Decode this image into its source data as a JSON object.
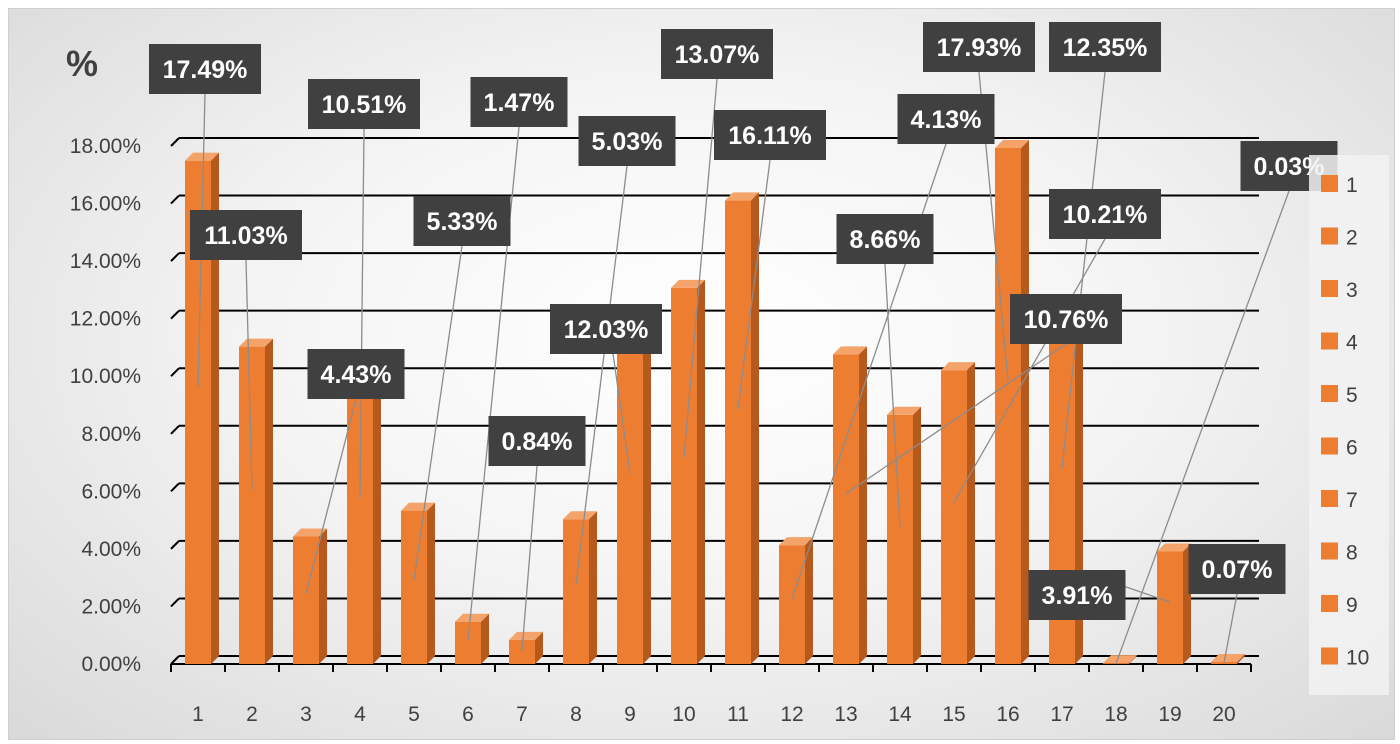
{
  "chart_data": {
    "type": "bar",
    "style": "3d-column",
    "title": "",
    "ylabel": "%",
    "xlabel": "",
    "categories": [
      "1",
      "2",
      "3",
      "4",
      "5",
      "6",
      "7",
      "8",
      "9",
      "10",
      "11",
      "12",
      "13",
      "14",
      "15",
      "16",
      "17",
      "18",
      "19",
      "20"
    ],
    "values": [
      17.49,
      11.03,
      4.43,
      10.51,
      5.33,
      1.47,
      0.84,
      5.03,
      12.03,
      13.07,
      16.11,
      4.13,
      10.76,
      8.66,
      10.21,
      17.93,
      12.35,
      0.03,
      3.91,
      0.07
    ],
    "data_labels": [
      "17.49%",
      "11.03%",
      "4.43%",
      "10.51%",
      "5.33%",
      "1.47%",
      "0.84%",
      "5.03%",
      "12.03%",
      "13.07%",
      "16.11%",
      "4.13%",
      "10.76%",
      "8.66%",
      "10.21%",
      "17.93%",
      "12.35%",
      "0.03%",
      "3.91%",
      "0.07%"
    ],
    "ylim": [
      0,
      18
    ],
    "yticks": [
      "0.00%",
      "2.00%",
      "4.00%",
      "6.00%",
      "8.00%",
      "10.00%",
      "12.00%",
      "14.00%",
      "16.00%",
      "18.00%"
    ],
    "grid": true,
    "legend_position": "right",
    "legend_entries": [
      "1",
      "2",
      "3",
      "4",
      "5",
      "6",
      "7",
      "8",
      "9",
      "10"
    ],
    "bar_color": "#ed7d31",
    "bar_dark": "#b55a1c",
    "bar_top": "#f4a46a",
    "label_bg": "#404040",
    "label_text_color": "#ffffff"
  }
}
